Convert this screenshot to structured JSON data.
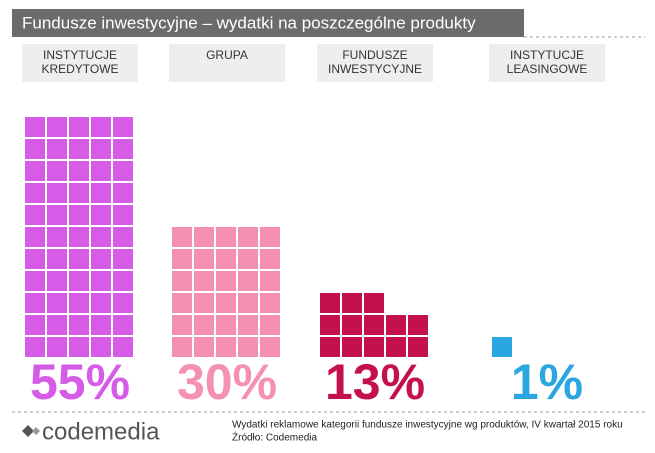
{
  "chart_data": {
    "type": "waffle",
    "title": "Fundusze inwestycyjne – wydatki na poszczególne produkty",
    "categories": [
      "INSTYTUCJE KREDYTOWE",
      "GRUPA",
      "FUNDUSZE INWESTYCYJNE",
      "INSTYTUCJE LEASINGOWE"
    ],
    "values": [
      55,
      30,
      13,
      1
    ],
    "value_labels": [
      "55%",
      "30%",
      "13%",
      "1%"
    ],
    "colors": [
      "#d65ce8",
      "#f490b4",
      "#c4104e",
      "#2aa6e0"
    ],
    "note": "Wydatki reklamowe kategorii fundusze inwestycyjne wg produktów, IV kwartał 2015 roku",
    "source": "Źródło: Codemedia",
    "logo": "codemedia"
  }
}
